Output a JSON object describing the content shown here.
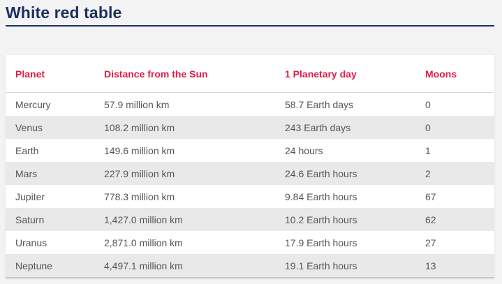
{
  "page": {
    "title": "White red table"
  },
  "table": {
    "headers": {
      "planet": "Planet",
      "distance": "Distance from the Sun",
      "day": "1 Planetary day",
      "moons": "Moons"
    },
    "rows": [
      {
        "planet": "Mercury",
        "distance": "57.9 million km",
        "day": "58.7 Earth days",
        "moons": "0"
      },
      {
        "planet": "Venus",
        "distance": "108.2 million km",
        "day": "243 Earth days",
        "moons": "0"
      },
      {
        "planet": "Earth",
        "distance": "149.6 million km",
        "day": "24 hours",
        "moons": "1"
      },
      {
        "planet": "Mars",
        "distance": "227.9 million km",
        "day": "24.6 Earth hours",
        "moons": "2"
      },
      {
        "planet": "Jupiter",
        "distance": "778.3 million km",
        "day": "9.84 Earth hours",
        "moons": "67"
      },
      {
        "planet": "Saturn",
        "distance": "1,427.0 million km",
        "day": "10.2 Earth hours",
        "moons": "62"
      },
      {
        "planet": "Uranus",
        "distance": "2,871.0 million km",
        "day": "17.9 Earth hours",
        "moons": "27"
      },
      {
        "planet": "Neptune",
        "distance": "4,497.1 million km",
        "day": "19.1 Earth hours",
        "moons": "13"
      }
    ]
  },
  "colors": {
    "title": "#1d2f63",
    "header_text": "#e21b46",
    "body_text": "#555555",
    "stripe": "#e9e9e9",
    "background": "#f3f3f3"
  }
}
